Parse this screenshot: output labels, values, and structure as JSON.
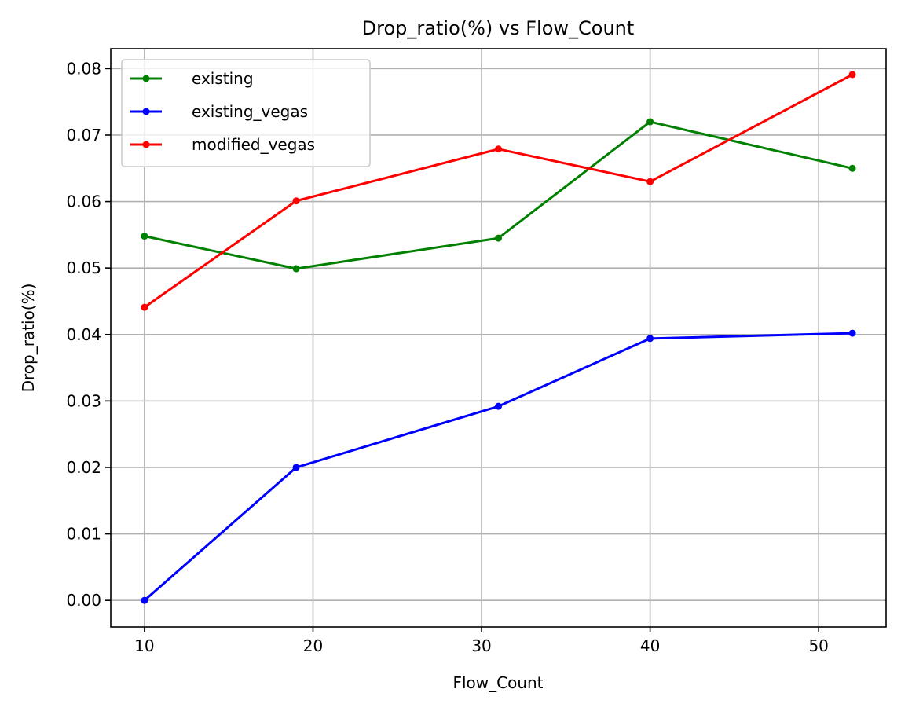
{
  "chart_data": {
    "type": "line",
    "title": "Drop_ratio(%) vs Flow_Count",
    "xlabel": "Flow_Count",
    "ylabel": "Drop_ratio(%)",
    "x": [
      10,
      19,
      31,
      40,
      52
    ],
    "xlim": [
      8,
      54
    ],
    "ylim": [
      -0.004,
      0.083
    ],
    "xticks": [
      10,
      20,
      30,
      40,
      50
    ],
    "yticks": [
      0.0,
      0.01,
      0.02,
      0.03,
      0.04,
      0.05,
      0.06,
      0.07,
      0.08
    ],
    "xtick_labels": [
      "10",
      "20",
      "30",
      "40",
      "50"
    ],
    "ytick_labels": [
      "0.00",
      "0.01",
      "0.02",
      "0.03",
      "0.04",
      "0.05",
      "0.06",
      "0.07",
      "0.08"
    ],
    "grid": true,
    "legend_position": "upper-left",
    "series": [
      {
        "name": "existing",
        "color": "#008000",
        "values": [
          0.0548,
          0.0499,
          0.0545,
          0.072,
          0.065
        ]
      },
      {
        "name": "existing_vegas",
        "color": "#0000ff",
        "values": [
          0.0,
          0.02,
          0.0292,
          0.0394,
          0.0402
        ]
      },
      {
        "name": "modified_vegas",
        "color": "#ff0000",
        "values": [
          0.0441,
          0.0601,
          0.0679,
          0.063,
          0.0791
        ]
      }
    ]
  }
}
